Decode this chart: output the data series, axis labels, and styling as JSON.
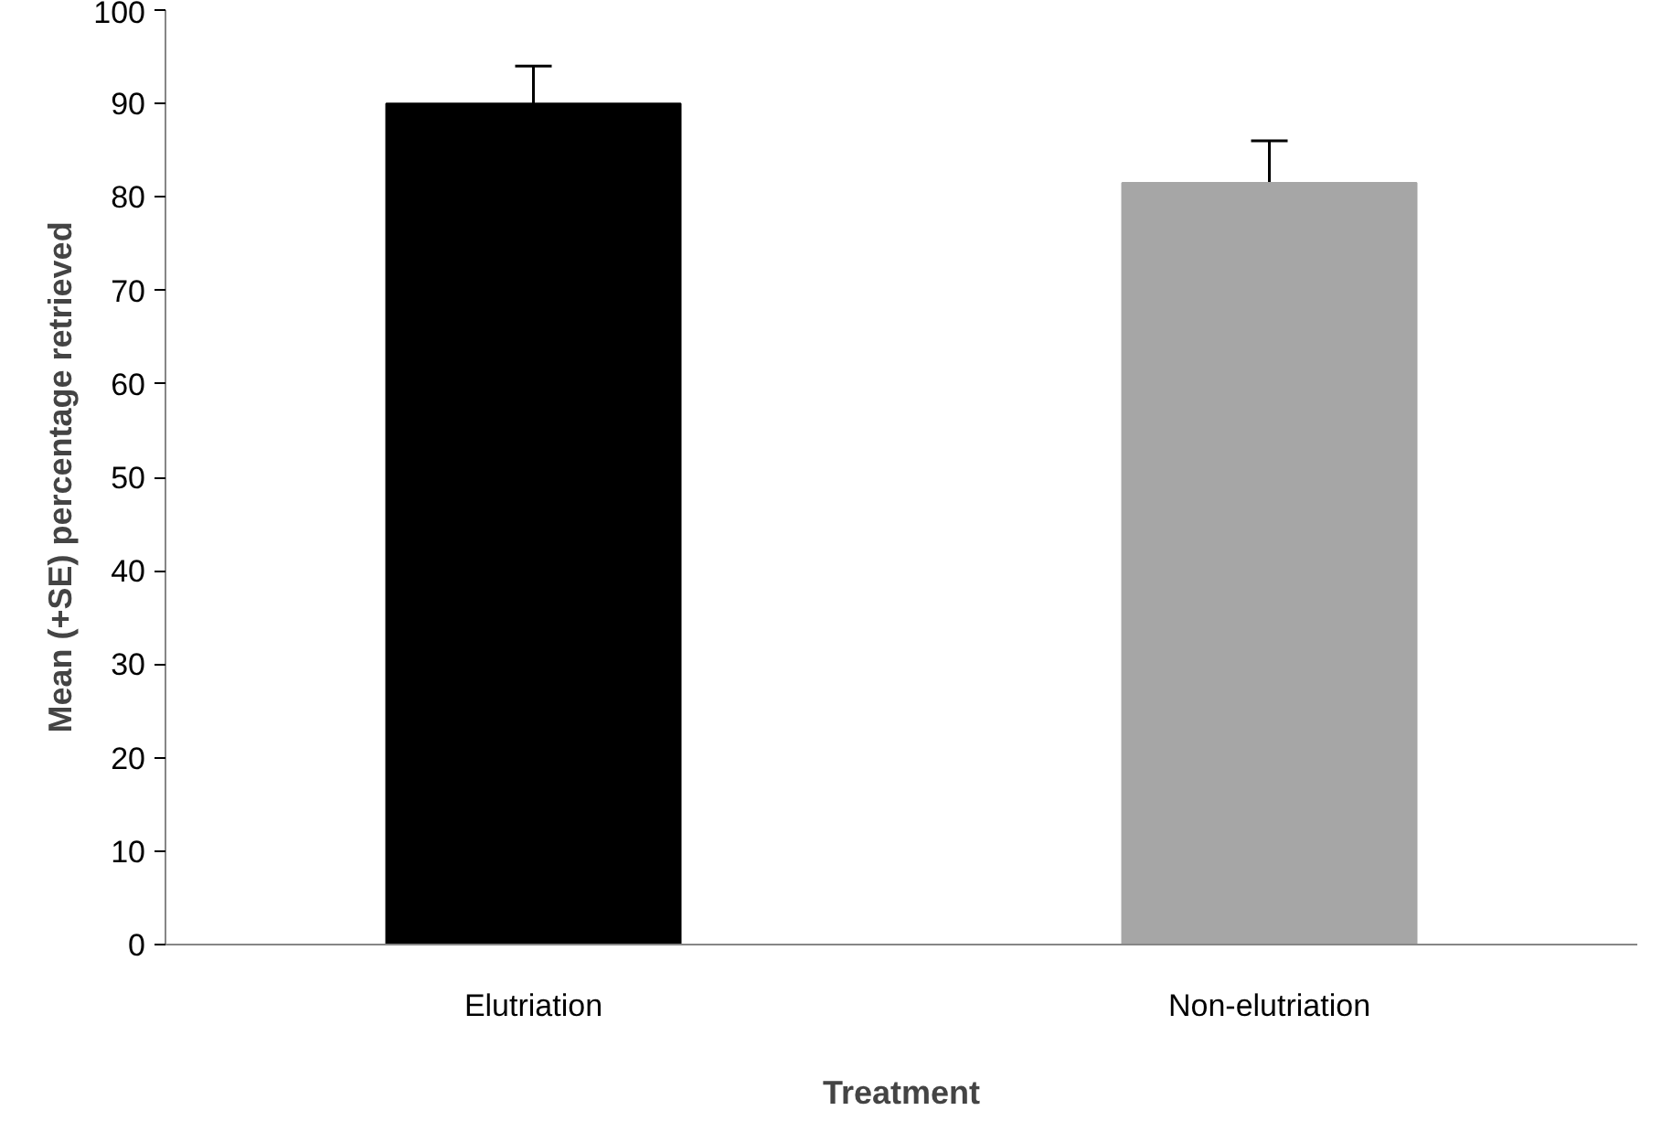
{
  "chart_data": {
    "type": "bar",
    "xlabel": "Treatment",
    "ylabel": "Mean (+SE) percentage retrieved",
    "categories": [
      "Elutriation",
      "Non-elutriation"
    ],
    "values": [
      90,
      81.5
    ],
    "colors": [
      "#000000",
      "#a6a6a6"
    ],
    "errors": [
      [
        90,
        94
      ],
      [
        81.5,
        86
      ]
    ],
    "ylim": [
      0,
      100
    ],
    "yticks": [
      0,
      10,
      20,
      30,
      40,
      50,
      60,
      70,
      80,
      90,
      100
    ],
    "grid": false
  }
}
